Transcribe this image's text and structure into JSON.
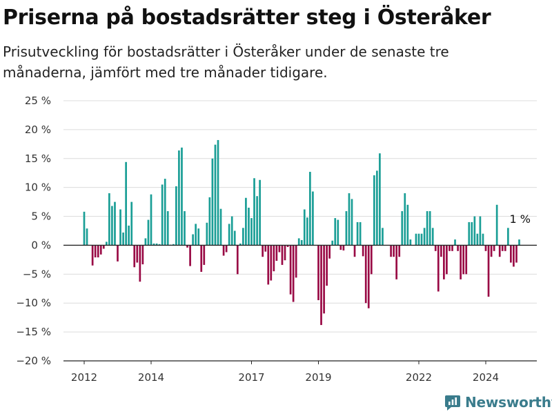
{
  "title": "Priserna på bostadsrätter steg i Österåker",
  "subtitle": "Prisutveckling för bostadsrätter i Österåker under de senaste tre månaderna, jämfört med tre månader tidigare.",
  "brand": "Newsworthy",
  "colors": {
    "positive": "#1a9e96",
    "negative": "#990a45",
    "brand": "#3a7c8c"
  },
  "chart_data": {
    "type": "bar",
    "title": "Priserna på bostadsrätter steg i Österåker",
    "xlabel": "",
    "ylabel": "",
    "ylim": [
      -20,
      25
    ],
    "yticks": [
      -20,
      -15,
      -10,
      -5,
      0,
      5,
      10,
      15,
      20,
      25
    ],
    "ytick_labels": [
      "−20 %",
      "−15 %",
      "−10 %",
      "−5 %",
      "0 %",
      "5 %",
      "10 %",
      "15 %",
      "20 %",
      "25 %"
    ],
    "xticks": [
      2012,
      2014,
      2017,
      2019,
      2022,
      2024
    ],
    "grid": true,
    "annotation": {
      "text": "1 %",
      "x": 2025.0,
      "y": 1
    },
    "x": [
      2012.0,
      2012.083,
      2012.167,
      2012.25,
      2012.333,
      2012.417,
      2012.5,
      2012.583,
      2012.667,
      2012.75,
      2012.833,
      2012.917,
      2013.0,
      2013.083,
      2013.167,
      2013.25,
      2013.333,
      2013.417,
      2013.5,
      2013.583,
      2013.667,
      2013.75,
      2013.833,
      2013.917,
      2014.0,
      2014.083,
      2014.167,
      2014.25,
      2014.333,
      2014.417,
      2014.5,
      2014.583,
      2014.667,
      2014.75,
      2014.833,
      2014.917,
      2015.0,
      2015.083,
      2015.167,
      2015.25,
      2015.333,
      2015.417,
      2015.5,
      2015.583,
      2015.667,
      2015.75,
      2015.833,
      2015.917,
      2016.0,
      2016.083,
      2016.167,
      2016.25,
      2016.333,
      2016.417,
      2016.5,
      2016.583,
      2016.667,
      2016.75,
      2016.833,
      2016.917,
      2017.0,
      2017.083,
      2017.167,
      2017.25,
      2017.333,
      2017.417,
      2017.5,
      2017.583,
      2017.667,
      2017.75,
      2017.833,
      2017.917,
      2018.0,
      2018.083,
      2018.167,
      2018.25,
      2018.333,
      2018.417,
      2018.5,
      2018.583,
      2018.667,
      2018.75,
      2018.833,
      2018.917,
      2019.0,
      2019.083,
      2019.167,
      2019.25,
      2019.333,
      2019.417,
      2019.5,
      2019.583,
      2019.667,
      2019.75,
      2019.833,
      2019.917,
      2020.0,
      2020.083,
      2020.167,
      2020.25,
      2020.333,
      2020.417,
      2020.5,
      2020.583,
      2020.667,
      2020.75,
      2020.833,
      2020.917,
      2021.0,
      2021.083,
      2021.167,
      2021.25,
      2021.333,
      2021.417,
      2021.5,
      2021.583,
      2021.667,
      2021.75,
      2021.833,
      2021.917,
      2022.0,
      2022.083,
      2022.167,
      2022.25,
      2022.333,
      2022.417,
      2022.5,
      2022.583,
      2022.667,
      2022.75,
      2022.833,
      2022.917,
      2023.0,
      2023.083,
      2023.167,
      2023.25,
      2023.333,
      2023.417,
      2023.5,
      2023.583,
      2023.667,
      2023.75,
      2023.833,
      2023.917,
      2024.0,
      2024.083,
      2024.167,
      2024.25,
      2024.333,
      2024.417,
      2024.5,
      2024.583,
      2024.667,
      2024.75,
      2024.833,
      2024.917,
      2025.0
    ],
    "values": [
      5.8,
      2.9,
      0,
      -3.5,
      -2.1,
      -2.1,
      -1.6,
      -0.6,
      0.6,
      9.0,
      6.8,
      7.5,
      -2.8,
      6.2,
      2.2,
      14.4,
      3.4,
      7.5,
      -3.8,
      -3.0,
      -6.3,
      -3.3,
      1.2,
      4.4,
      8.8,
      0.3,
      0.3,
      0.2,
      10.5,
      11.5,
      5.9,
      0.1,
      0.2,
      10.2,
      16.4,
      16.9,
      5.9,
      -0.4,
      -3.6,
      1.9,
      3.7,
      2.9,
      -4.6,
      -3.4,
      3.9,
      8.3,
      15.0,
      17.4,
      18.2,
      6.3,
      -1.8,
      -1.2,
      3.7,
      5.0,
      2.5,
      -5.0,
      0.3,
      3.0,
      8.2,
      6.5,
      4.7,
      11.6,
      8.5,
      11.3,
      -2.0,
      -1.1,
      -6.8,
      -6.1,
      -4.5,
      -2.7,
      -1.2,
      -3.4,
      -2.6,
      -0.3,
      -8.5,
      -9.8,
      -5.6,
      1.2,
      0.9,
      6.2,
      4.8,
      12.7,
      9.3,
      0,
      -9.5,
      -13.8,
      -11.8,
      -7.0,
      -2.3,
      0.8,
      4.7,
      4.4,
      -0.8,
      -0.9,
      5.9,
      9.0,
      8.0,
      -2.0,
      4.0,
      4.0,
      -1.9,
      -10.0,
      -10.9,
      -5.0,
      12.1,
      12.9,
      15.9,
      3.0,
      0,
      0,
      -2.0,
      -2.0,
      -5.9,
      -2.0,
      5.9,
      9.0,
      7.0,
      1.0,
      0,
      2.0,
      2.0,
      2.0,
      3.0,
      5.9,
      5.9,
      3.0,
      -1.0,
      -8.0,
      -2.0,
      -5.9,
      -5.0,
      -1.0,
      -1.0,
      1.0,
      -1.0,
      -5.9,
      -5.0,
      -5.0,
      4.0,
      4.0,
      5.0,
      2.0,
      5.0,
      2.0,
      -1.0,
      -8.9,
      -2.0,
      -1.0,
      7.0,
      -2.0,
      -1.0,
      -1.0,
      3.0,
      -3.0,
      -3.7,
      -3.0,
      1.0
    ]
  }
}
